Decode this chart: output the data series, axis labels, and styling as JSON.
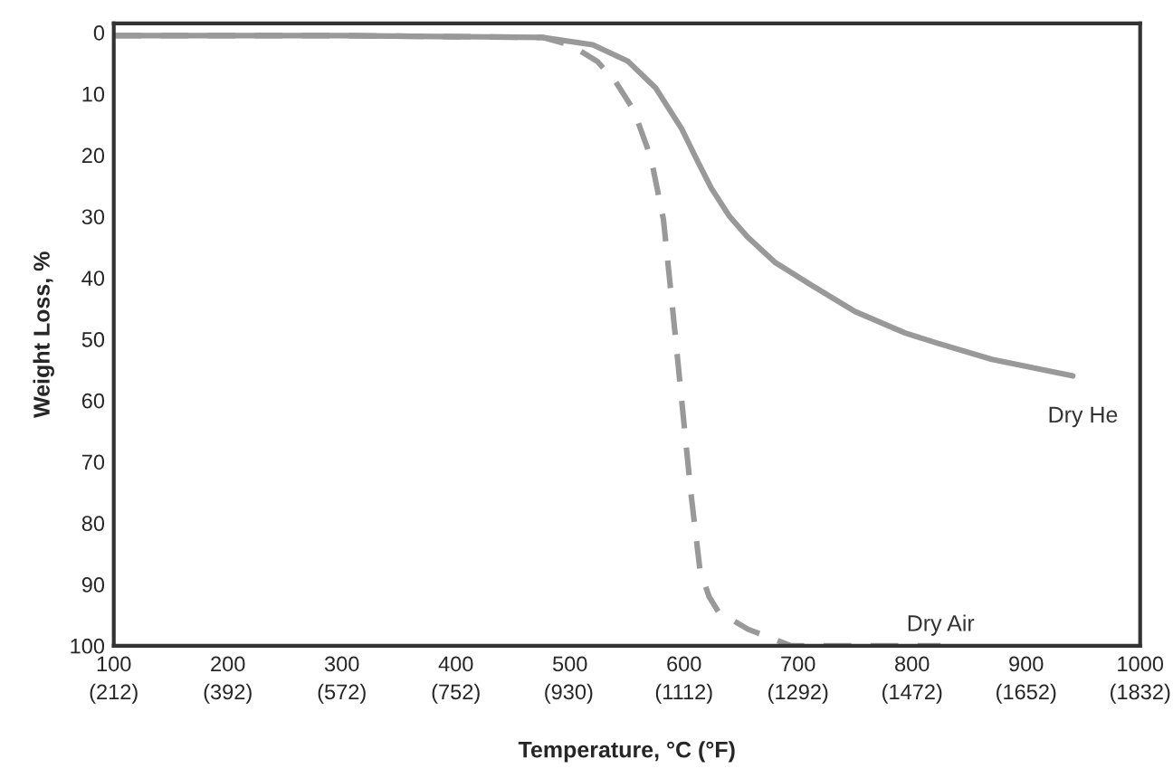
{
  "chart_data": {
    "type": "line",
    "xlabel": "Temperature, °C (°F)",
    "ylabel": "Weight Loss, %",
    "xlim": [
      100,
      1000
    ],
    "ylim": [
      100,
      -1.5
    ],
    "xticks": [
      100,
      200,
      300,
      400,
      500,
      600,
      700,
      800,
      900,
      1000
    ],
    "x2lim": [
      212,
      1832
    ],
    "x2ticks": [
      {
        "value": 212,
        "label": "(212)"
      },
      {
        "value": 392,
        "label": "(392)"
      },
      {
        "value": 572,
        "label": "(572)"
      },
      {
        "value": 752,
        "label": "(752)"
      },
      {
        "value": 930,
        "label": "(930)"
      },
      {
        "value": 1112,
        "label": "(1112)"
      },
      {
        "value": 1292,
        "label": "(1292)"
      },
      {
        "value": 1472,
        "label": "(1472)"
      },
      {
        "value": 1652,
        "label": "(1652)"
      },
      {
        "value": 1832,
        "label": "(1832)"
      }
    ],
    "yticks": [
      0,
      10,
      20,
      30,
      40,
      50,
      60,
      70,
      80,
      90,
      100
    ],
    "grid": false,
    "legend": false,
    "series": [
      {
        "name": "Dry He",
        "color": "#999999",
        "line_style": "solid",
        "x": [
          100,
          300,
          476,
          520,
          551,
          575,
          598,
          612,
          624,
          640,
          656,
          680,
          710,
          750,
          794,
          821,
          870,
          941
        ],
        "values": [
          0.5,
          0.5,
          0.8,
          2,
          4.7,
          9,
          15.7,
          21,
          25.4,
          30,
          33.4,
          37.5,
          41,
          45.5,
          49,
          50.6,
          53.3,
          56
        ]
      },
      {
        "name": "Dry Air",
        "color": "#999999",
        "line_style": "dashed",
        "x": [
          100,
          300,
          476,
          500,
          524,
          540,
          556,
          571,
          582,
          590,
          598,
          606,
          614,
          622,
          630,
          656,
          694,
          760,
          825
        ],
        "values": [
          0.5,
          0.5,
          0.8,
          2,
          4.7,
          8,
          12.7,
          20.4,
          30.5,
          45,
          60,
          75,
          87.6,
          92,
          94.4,
          97.3,
          100,
          100,
          100
        ]
      }
    ]
  }
}
